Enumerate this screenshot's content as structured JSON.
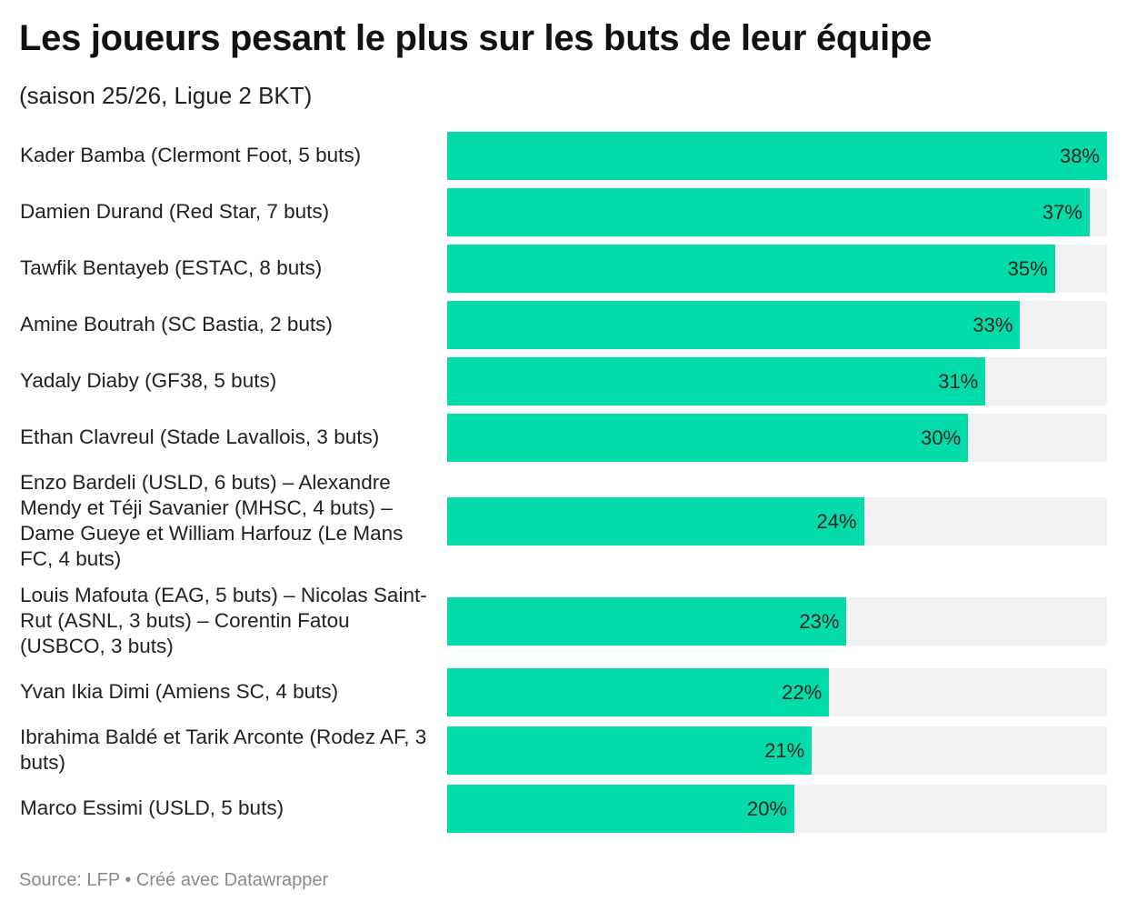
{
  "header": {
    "title": "Les joueurs pesant le plus sur les buts de leur équipe",
    "subtitle": "(saison 25/26, Ligue 2 BKT)"
  },
  "footer": {
    "source": "Source: LFP • Créé avec Datawrapper"
  },
  "colors": {
    "bar": "#01dcaa",
    "track": "#f2f2f2"
  },
  "chart_data": {
    "type": "bar",
    "orientation": "horizontal",
    "title": "Les joueurs pesant le plus sur les buts de leur équipe",
    "subtitle": "(saison 25/26, Ligue 2 BKT)",
    "xlim": [
      0,
      38
    ],
    "grid": false,
    "value_suffix": "%",
    "categories": [
      "Kader Bamba (Clermont Foot, 5 buts)",
      "Damien Durand (Red Star, 7 buts)",
      "Tawfik Bentayeb (ESTAC, 8 buts)",
      "Amine Boutrah (SC Bastia, 2 buts)",
      "Yadaly Diaby (GF38, 5 buts)",
      "Ethan Clavreul (Stade Lavallois, 3 buts)",
      "Enzo Bardeli (USLD, 6 buts) – Alexandre Mendy et Téji Savanier (MHSC, 4 buts) – Dame Gueye et William Harfouz (Le Mans FC, 4 buts)",
      "Louis Mafouta (EAG, 5 buts) – Nicolas Saint-Rut (ASNL, 3 buts) – Corentin Fatou (USBCO, 3 buts)",
      "Yvan Ikia Dimi (Amiens SC, 4 buts)",
      "Ibrahima Baldé et Tarik Arconte (Rodez AF, 3 buts)",
      "Marco Essimi (USLD, 5 buts)"
    ],
    "values": [
      38,
      37,
      35,
      33,
      31,
      30,
      24,
      23,
      22,
      21,
      20
    ],
    "labels": [
      "38%",
      "37%",
      "35%",
      "33%",
      "31%",
      "30%",
      "24%",
      "23%",
      "22%",
      "21%",
      "20%"
    ]
  }
}
